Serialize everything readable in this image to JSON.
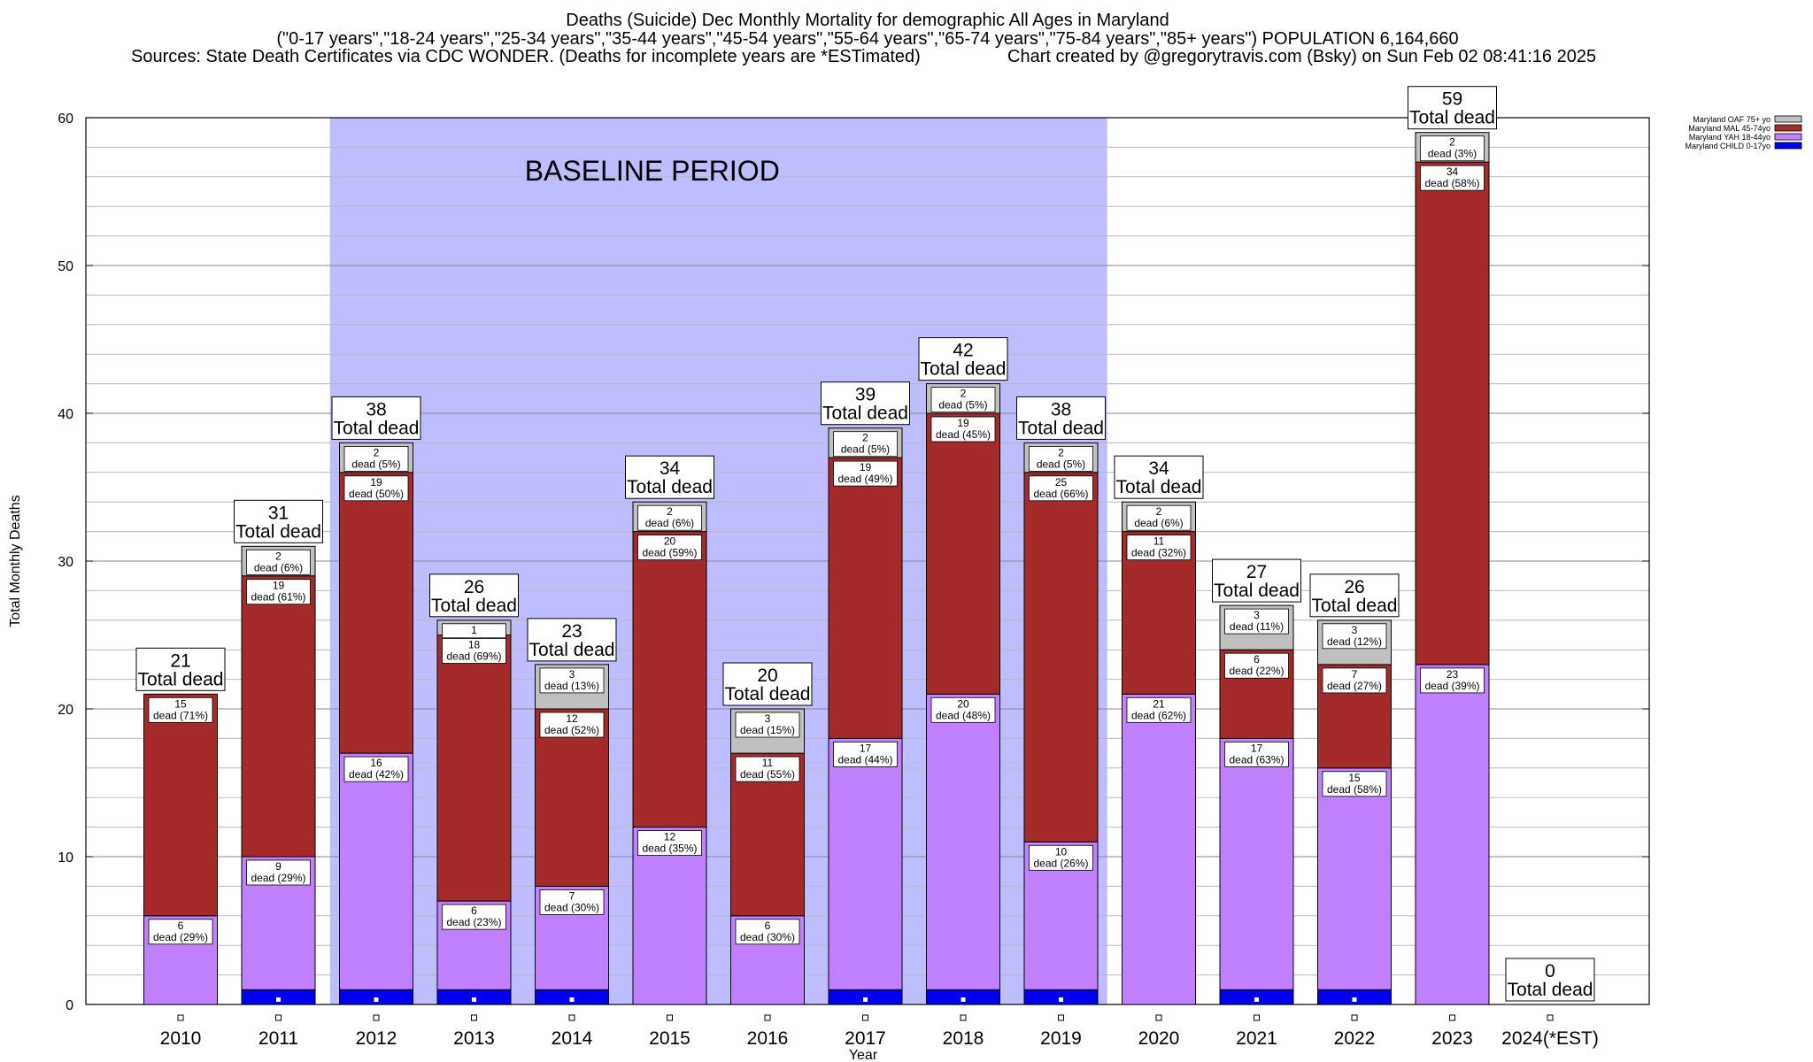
{
  "header": {
    "title": "Deaths (Suicide) Dec Monthly Mortality for demographic All Ages in Maryland",
    "subtitle": "(\"0-17 years\",\"18-24 years\",\"25-34 years\",\"35-44 years\",\"45-54 years\",\"55-64 years\",\"65-74 years\",\"75-84 years\",\"85+ years\") POPULATION 6,164,660",
    "sources": "Sources: State Death Certificates via CDC WONDER. (Deaths for incomplete years are *ESTimated)",
    "credit": "Chart created by @gregorytravis.com (Bsky) on Sun Feb 02 08:41:16 2025"
  },
  "chart_data": {
    "type": "bar",
    "stacked": true,
    "xlabel": "Year",
    "ylabel": "Total Monthly Deaths",
    "ylim": [
      0,
      60
    ],
    "yticks": [
      0,
      10,
      20,
      30,
      40,
      50,
      60
    ],
    "minor_grid_step": 2,
    "grid": true,
    "legend_position": "top-right",
    "categories": [
      "2010",
      "2011",
      "2012",
      "2013",
      "2014",
      "2015",
      "2016",
      "2017",
      "2018",
      "2019",
      "2020",
      "2021",
      "2022",
      "2023",
      "2024(*EST)"
    ],
    "series": [
      {
        "name": "Maryland CHILD 0-17yo",
        "color": "#0000ee",
        "values": [
          0,
          1,
          1,
          1,
          1,
          0,
          0,
          1,
          1,
          1,
          0,
          1,
          1,
          0,
          0
        ]
      },
      {
        "name": "Maryland YAH 18-44yo",
        "color": "#c080ff",
        "values": [
          6,
          9,
          16,
          6,
          7,
          12,
          6,
          17,
          20,
          10,
          21,
          17,
          15,
          23,
          0
        ]
      },
      {
        "name": "Maryland MAL 45-74yo",
        "color": "#a52a2a",
        "values": [
          15,
          19,
          19,
          18,
          12,
          20,
          11,
          19,
          19,
          25,
          11,
          6,
          7,
          34,
          0
        ]
      },
      {
        "name": "Maryland OAF 75+ yo",
        "color": "#c0c0c0",
        "values": [
          0,
          2,
          2,
          1,
          3,
          2,
          3,
          2,
          2,
          2,
          2,
          3,
          3,
          2,
          0
        ]
      }
    ],
    "segment_labels": [
      [
        [
          "",
          ""
        ],
        [
          "6",
          "dead (29%)"
        ],
        [
          "15",
          "dead (71%)"
        ],
        null
      ],
      [
        null,
        [
          "9",
          "dead (29%)"
        ],
        [
          "19",
          "dead (61%)"
        ],
        [
          "2",
          "dead (6%)"
        ]
      ],
      [
        null,
        [
          "16",
          "dead (42%)"
        ],
        [
          "19",
          "dead (50%)"
        ],
        [
          "2",
          "dead (5%)"
        ]
      ],
      [
        null,
        [
          "6",
          "dead (23%)"
        ],
        [
          "18",
          "dead (69%)"
        ],
        [
          "1",
          ""
        ]
      ],
      [
        null,
        [
          "7",
          "dead (30%)"
        ],
        [
          "12",
          "dead (52%)"
        ],
        [
          "3",
          "dead (13%)"
        ]
      ],
      [
        null,
        [
          "12",
          "dead (35%)"
        ],
        [
          "20",
          "dead (59%)"
        ],
        [
          "2",
          "dead (6%)"
        ]
      ],
      [
        null,
        [
          "6",
          "dead (30%)"
        ],
        [
          "11",
          "dead (55%)"
        ],
        [
          "3",
          "dead (15%)"
        ]
      ],
      [
        null,
        [
          "17",
          "dead (44%)"
        ],
        [
          "19",
          "dead (49%)"
        ],
        [
          "2",
          "dead (5%)"
        ]
      ],
      [
        null,
        [
          "20",
          "dead (48%)"
        ],
        [
          "19",
          "dead (45%)"
        ],
        [
          "2",
          "dead (5%)"
        ]
      ],
      [
        null,
        [
          "10",
          "dead (26%)"
        ],
        [
          "25",
          "dead (66%)"
        ],
        [
          "2",
          "dead (5%)"
        ]
      ],
      [
        null,
        [
          "21",
          "dead (62%)"
        ],
        [
          "11",
          "dead (32%)"
        ],
        [
          "2",
          "dead (6%)"
        ]
      ],
      [
        null,
        [
          "17",
          "dead (63%)"
        ],
        [
          "6",
          "dead (22%)"
        ],
        [
          "3",
          "dead (11%)"
        ]
      ],
      [
        null,
        [
          "15",
          "dead (58%)"
        ],
        [
          "7",
          "dead (27%)"
        ],
        [
          "3",
          "dead (12%)"
        ]
      ],
      [
        null,
        [
          "23",
          "dead (39%)"
        ],
        [
          "34",
          "dead (58%)"
        ],
        [
          "2",
          "dead (3%)"
        ]
      ],
      [
        null,
        null,
        null,
        null
      ]
    ],
    "totals": [
      21,
      31,
      38,
      26,
      23,
      34,
      20,
      39,
      42,
      38,
      34,
      27,
      26,
      59,
      0
    ],
    "total_suffix": "Total dead",
    "baseline": {
      "label": "BASELINE PERIOD",
      "from": "2012",
      "to": "2019",
      "color": "#bdbdff"
    }
  }
}
